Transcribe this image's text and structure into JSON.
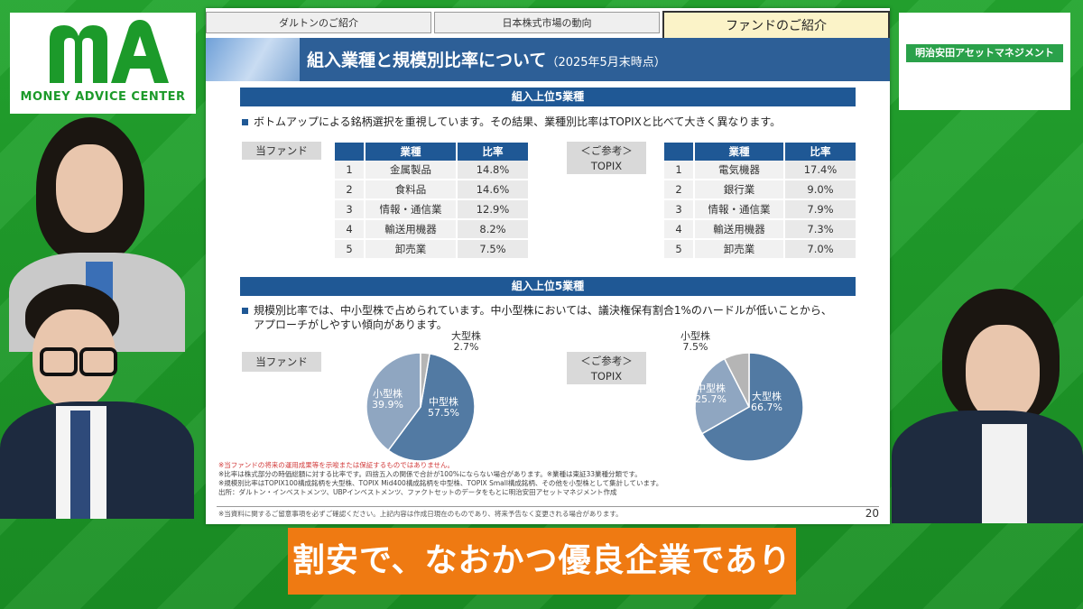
{
  "logo": {
    "mark": "MA",
    "text": "MONEY ADVICE CENTER"
  },
  "company": {
    "name": "明治安田アセットマネジメント"
  },
  "tabs": [
    {
      "label": "ダルトンのご紹介",
      "active": false
    },
    {
      "label": "日本株式市場の動向",
      "active": false
    },
    {
      "label": "ファンドのご紹介",
      "active": true
    }
  ],
  "slide": {
    "title": "組入業種と規模別比率について",
    "title_sub": "（2025年5月末時点）",
    "section1": {
      "header": "組入上位5業種",
      "bullet": "ボトムアップによる銘柄選択を重視しています。その結果、業種別比率はTOPIXと比べて大きく異なります。",
      "fund_label": "当ファンド",
      "ref_label_line1": "＜ご参考＞",
      "ref_label_line2": "TOPIX",
      "col_industry": "業種",
      "col_ratio": "比率",
      "fund_rows": [
        {
          "rank": "1",
          "industry": "金属製品",
          "ratio": "14.8%"
        },
        {
          "rank": "2",
          "industry": "食料品",
          "ratio": "14.6%"
        },
        {
          "rank": "3",
          "industry": "情報・通信業",
          "ratio": "12.9%"
        },
        {
          "rank": "4",
          "industry": "輸送用機器",
          "ratio": "8.2%"
        },
        {
          "rank": "5",
          "industry": "卸売業",
          "ratio": "7.5%"
        }
      ],
      "topix_rows": [
        {
          "rank": "1",
          "industry": "電気機器",
          "ratio": "17.4%"
        },
        {
          "rank": "2",
          "industry": "銀行業",
          "ratio": "9.0%"
        },
        {
          "rank": "3",
          "industry": "情報・通信業",
          "ratio": "7.9%"
        },
        {
          "rank": "4",
          "industry": "輸送用機器",
          "ratio": "7.3%"
        },
        {
          "rank": "5",
          "industry": "卸売業",
          "ratio": "7.0%"
        }
      ]
    },
    "section2": {
      "header": "組入上位5業種",
      "bullet_line1": "規模別比率では、中小型株で占められています。中小型株においては、議決権保有割合1%のハードルが低いことから、",
      "bullet_line2": "アプローチがしやすい傾向があります。",
      "fund_label": "当ファンド",
      "ref_label_line1": "＜ご参考＞",
      "ref_label_line2": "TOPIX"
    },
    "notes": {
      "line1": "※当ファンドの将来の運用成果等を示唆または保証するものではありません。",
      "line2": "※比率は株式部分の時価総額に対する比率です。四捨五入の関係で合計が100%にならない場合があります。※業種は東証33業種分類です。",
      "line3": "※規模別比率はTOPIX100構成銘柄を大型株、TOPIX Mid400構成銘柄を中型株、TOPIX Small構成銘柄、その他を小型株として集計しています。",
      "line4": "出所：ダルトン・インベストメンツ、UBPインベストメンツ、ファクトセットのデータをもとに明治安田アセットマネジメント作成"
    },
    "footer": "※当資料に関するご留意事項を必ずご確認ください。上記内容は作成日現在のものであり、将来予告なく変更される場合があります。",
    "page": "20"
  },
  "caption": "割安で、なおかつ優良企業であり",
  "chart_data": [
    {
      "type": "pie",
      "title": "当ファンド",
      "categories": [
        "中型株",
        "小型株",
        "大型株"
      ],
      "values": [
        57.5,
        39.9,
        2.7
      ],
      "labels": {
        "mid_name": "中型株",
        "mid_val": "57.5%",
        "small_name": "小型株",
        "small_val": "39.9%",
        "large_name": "大型株",
        "large_val": "2.7%"
      },
      "colors": [
        "#527aa3",
        "#8fa6c1",
        "#b5b5b5"
      ]
    },
    {
      "type": "pie",
      "title": "TOPIX",
      "categories": [
        "大型株",
        "中型株",
        "小型株"
      ],
      "values": [
        66.7,
        25.7,
        7.5
      ],
      "labels": {
        "large_name": "大型株",
        "large_val": "66.7%",
        "mid_name": "中型株",
        "mid_val": "25.7%",
        "small_name": "小型株",
        "small_val": "7.5%"
      },
      "colors": [
        "#527aa3",
        "#8fa6c1",
        "#b5b5b5"
      ]
    }
  ]
}
